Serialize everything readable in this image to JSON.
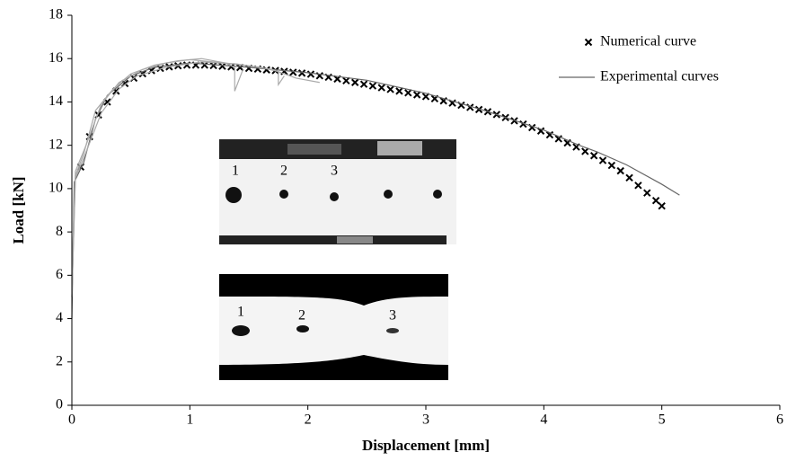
{
  "chart_data": {
    "type": "scatter-line",
    "xlabel": "Displacement [mm]",
    "ylabel": "Load [kN]",
    "xlim": [
      0,
      6
    ],
    "xticks": [
      0,
      1,
      2,
      3,
      4,
      5,
      6
    ],
    "ylim": [
      0,
      18
    ],
    "yticks": [
      0,
      2,
      4,
      6,
      8,
      10,
      12,
      14,
      16,
      18
    ],
    "legend": "upper right",
    "series": [
      {
        "name": "Numerical curve",
        "color": "#000000",
        "marker": "x",
        "x": [
          0.075,
          0.15,
          0.225,
          0.3,
          0.375,
          0.45,
          0.525,
          0.6,
          0.675,
          0.75,
          0.825,
          0.9,
          0.975,
          1.05,
          1.125,
          1.2,
          1.275,
          1.35,
          1.425,
          1.5,
          1.575,
          1.65,
          1.725,
          1.8,
          1.875,
          1.95,
          2.025,
          2.1,
          2.175,
          2.25,
          2.325,
          2.4,
          2.475,
          2.55,
          2.625,
          2.7,
          2.775,
          2.85,
          2.925,
          3.0,
          3.075,
          3.15,
          3.225,
          3.3,
          3.375,
          3.45,
          3.525,
          3.6,
          3.675,
          3.75,
          3.825,
          3.9,
          3.975,
          4.05,
          4.125,
          4.2,
          4.275,
          4.35,
          4.425,
          4.5,
          4.575,
          4.65,
          4.725,
          4.8,
          4.875,
          4.95,
          5.0
        ],
        "values": [
          11.0,
          12.4,
          13.4,
          14.0,
          14.5,
          14.85,
          15.1,
          15.3,
          15.45,
          15.55,
          15.62,
          15.67,
          15.7,
          15.7,
          15.7,
          15.68,
          15.65,
          15.62,
          15.59,
          15.55,
          15.52,
          15.48,
          15.45,
          15.41,
          15.37,
          15.33,
          15.28,
          15.21,
          15.14,
          15.06,
          14.98,
          14.9,
          14.82,
          14.74,
          14.66,
          14.58,
          14.5,
          14.42,
          14.33,
          14.25,
          14.15,
          14.05,
          13.95,
          13.85,
          13.75,
          13.65,
          13.55,
          13.42,
          13.28,
          13.13,
          12.98,
          12.82,
          12.66,
          12.48,
          12.3,
          12.11,
          11.92,
          11.72,
          11.52,
          11.3,
          11.07,
          10.82,
          10.5,
          10.15,
          9.8,
          9.45,
          9.2
        ]
      },
      {
        "name": "Experimental curves",
        "color": "#666666",
        "marker": "line",
        "curves": [
          {
            "x": [
              0,
              0.02,
              0.1,
              0.2,
              0.3,
              0.5,
              0.7,
              1.0,
              1.5,
              2.0,
              2.5,
              3.0,
              3.5,
              4.0,
              4.3,
              4.45,
              4.7,
              5.0,
              5.15
            ],
            "values": [
              4,
              10.3,
              11.2,
              13.2,
              14.3,
              15.2,
              15.6,
              15.8,
              15.6,
              15.35,
              15.0,
              14.4,
              13.6,
              12.7,
              12.0,
              11.7,
              11.1,
              10.2,
              9.7
            ]
          },
          {
            "x": [
              0,
              0.03,
              0.1,
              0.2,
              0.35,
              0.5,
              0.7,
              0.9,
              1.1,
              1.3,
              1.38,
              1.38,
              1.45
            ],
            "values": [
              5,
              10.6,
              11.6,
              13.6,
              14.6,
              15.3,
              15.7,
              15.9,
              16.0,
              15.8,
              15.6,
              14.5,
              15.5
            ]
          },
          {
            "x": [
              0,
              0.03,
              0.12,
              0.25,
              0.4,
              0.6,
              0.8,
              1.0,
              1.3,
              1.6,
              1.75,
              1.75,
              1.8
            ],
            "values": [
              6,
              10.8,
              12.0,
              13.9,
              14.9,
              15.5,
              15.8,
              15.95,
              15.8,
              15.6,
              15.4,
              14.8,
              15.2
            ]
          },
          {
            "x": [
              0,
              0.03,
              0.1,
              0.25,
              0.4,
              0.55,
              0.8,
              1.1,
              1.4,
              1.7,
              1.9,
              2.1
            ],
            "values": [
              5,
              10.5,
              11.4,
              13.5,
              14.6,
              15.2,
              15.6,
              15.85,
              15.75,
              15.5,
              15.1,
              14.9
            ]
          }
        ]
      }
    ],
    "insets": [
      {
        "labels": [
          "1",
          "2",
          "3"
        ]
      },
      {
        "labels": [
          "1",
          "2",
          "3"
        ]
      }
    ]
  }
}
